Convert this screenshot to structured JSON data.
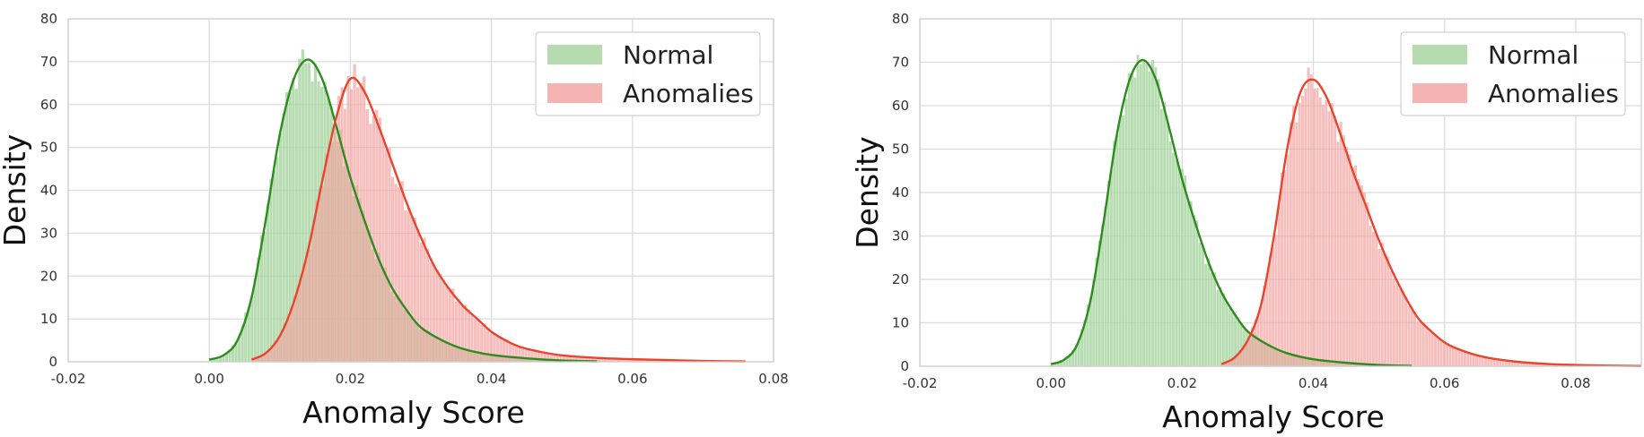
{
  "colors": {
    "normal_fill": "#a8d5a0",
    "normal_line": "#2e8b1f",
    "anomaly_fill": "#f3a6a3",
    "anomaly_line": "#e8452c"
  },
  "chart_data": [
    {
      "type": "histogram",
      "xlabel": "Anomaly Score",
      "ylabel": "Density",
      "xlim": [
        -0.02,
        0.08
      ],
      "ylim": [
        0,
        80
      ],
      "xticks": [
        "-0.02",
        "0.00",
        "0.02",
        "0.04",
        "0.06",
        "0.08"
      ],
      "xtick_values": [
        -0.02,
        0.0,
        0.02,
        0.04,
        0.06,
        0.08
      ],
      "yticks": [
        "0",
        "10",
        "20",
        "30",
        "40",
        "50",
        "60",
        "70",
        "80"
      ],
      "ytick_values": [
        0,
        10,
        20,
        30,
        40,
        50,
        60,
        70,
        80
      ],
      "grid": true,
      "legend_position": "top-right",
      "series": [
        {
          "name": "Normal",
          "color_key": "normal",
          "kde_x": [
            0.0,
            0.002,
            0.004,
            0.006,
            0.008,
            0.01,
            0.012,
            0.014,
            0.016,
            0.018,
            0.02,
            0.022,
            0.024,
            0.026,
            0.028,
            0.03,
            0.033,
            0.036,
            0.04,
            0.045,
            0.05,
            0.055
          ],
          "kde_y": [
            0.5,
            1.5,
            5,
            15,
            33,
            53,
            66,
            70.5,
            66,
            55,
            43,
            33,
            24,
            17,
            12,
            8,
            5,
            3,
            1.6,
            0.8,
            0.3,
            0.1
          ]
        },
        {
          "name": "Anomalies",
          "color_key": "anomaly",
          "kde_x": [
            0.006,
            0.008,
            0.01,
            0.012,
            0.014,
            0.016,
            0.018,
            0.02,
            0.022,
            0.024,
            0.026,
            0.028,
            0.03,
            0.032,
            0.034,
            0.036,
            0.038,
            0.04,
            0.042,
            0.044,
            0.047,
            0.05,
            0.055,
            0.06,
            0.065,
            0.07,
            0.076
          ],
          "kde_y": [
            0.5,
            2,
            6,
            14,
            26,
            42,
            57,
            66,
            63,
            55,
            46,
            37,
            29,
            22,
            17,
            13,
            10,
            7,
            5,
            3.5,
            2.3,
            1.5,
            0.9,
            0.6,
            0.4,
            0.2,
            0.1
          ]
        }
      ]
    },
    {
      "type": "histogram",
      "xlabel": "Anomaly Score",
      "ylabel": "Density",
      "xlim": [
        -0.02,
        0.09
      ],
      "ylim": [
        0,
        80
      ],
      "xticks": [
        "-0.02",
        "0.00",
        "0.02",
        "0.04",
        "0.06",
        "0.08"
      ],
      "xtick_values": [
        -0.02,
        0.0,
        0.02,
        0.04,
        0.06,
        0.08
      ],
      "yticks": [
        "0",
        "10",
        "20",
        "30",
        "40",
        "50",
        "60",
        "70",
        "80"
      ],
      "ytick_values": [
        0,
        10,
        20,
        30,
        40,
        50,
        60,
        70,
        80
      ],
      "grid": true,
      "legend_position": "top-right",
      "series": [
        {
          "name": "Normal",
          "color_key": "normal",
          "kde_x": [
            0.0,
            0.002,
            0.004,
            0.006,
            0.008,
            0.01,
            0.012,
            0.014,
            0.016,
            0.018,
            0.02,
            0.022,
            0.024,
            0.026,
            0.028,
            0.03,
            0.033,
            0.036,
            0.04,
            0.045,
            0.05,
            0.055
          ],
          "kde_y": [
            0.5,
            1.5,
            5,
            15,
            33,
            53,
            66,
            70.5,
            66,
            55,
            43,
            33,
            24,
            17,
            12,
            8,
            5,
            3,
            1.6,
            0.8,
            0.3,
            0.1
          ]
        },
        {
          "name": "Anomalies",
          "color_key": "anomaly",
          "kde_x": [
            0.026,
            0.028,
            0.03,
            0.032,
            0.034,
            0.036,
            0.038,
            0.04,
            0.042,
            0.044,
            0.046,
            0.048,
            0.05,
            0.052,
            0.054,
            0.056,
            0.058,
            0.06,
            0.062,
            0.065,
            0.068,
            0.072,
            0.076,
            0.08,
            0.085,
            0.09
          ],
          "kde_y": [
            0.5,
            2,
            6,
            14,
            30,
            50,
            63,
            66,
            62,
            54,
            45,
            37,
            29,
            22,
            16,
            11,
            8,
            5.5,
            4,
            2.5,
            1.6,
            0.9,
            0.5,
            0.3,
            0.15,
            0.05
          ]
        }
      ]
    }
  ]
}
